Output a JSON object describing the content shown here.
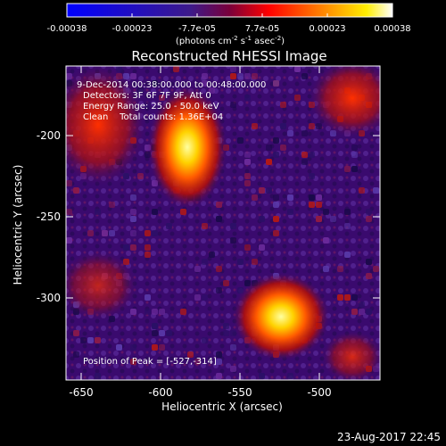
{
  "colorbar": {
    "tick_labels": [
      "-0.00038",
      "-0.00023",
      "-7.7e-05",
      "7.7e-05",
      "0.00023",
      "0.00038"
    ],
    "units": "(photons cm",
    "units_sup1": "-2",
    "units_mid1": " s",
    "units_sup2": "-1",
    "units_mid2": " asec",
    "units_sup3": "-2",
    "units_end": ")"
  },
  "plot": {
    "title": "Reconstructed RHESSI Image",
    "info_lines": [
      "9-Dec-2014 00:38:00.000 to 00:48:00.000",
      "Detectors: 3F 6F 7F 9F, Att 0",
      "Energy Range: 25.0 - 50.0 keV",
      "Clean    Total counts: 1.36E+04"
    ],
    "peak_label": "Position of Peak = [-527,-314]",
    "xlabel": "Heliocentric X (arcsec)",
    "ylabel": "Heliocentric Y (arcsec)",
    "x_ticks": [
      "-650",
      "-600",
      "-550",
      "-500"
    ],
    "y_ticks": [
      "-200",
      "-250",
      "-300"
    ],
    "timestamp": "23-Aug-2017 22:45"
  },
  "colors": {
    "background": "#000000",
    "map_base": "#3a0a6e",
    "colormap": [
      "#0000ff",
      "#4b0082",
      "#800000",
      "#ff0000",
      "#ff8000",
      "#ffff00",
      "#ffffff"
    ]
  }
}
